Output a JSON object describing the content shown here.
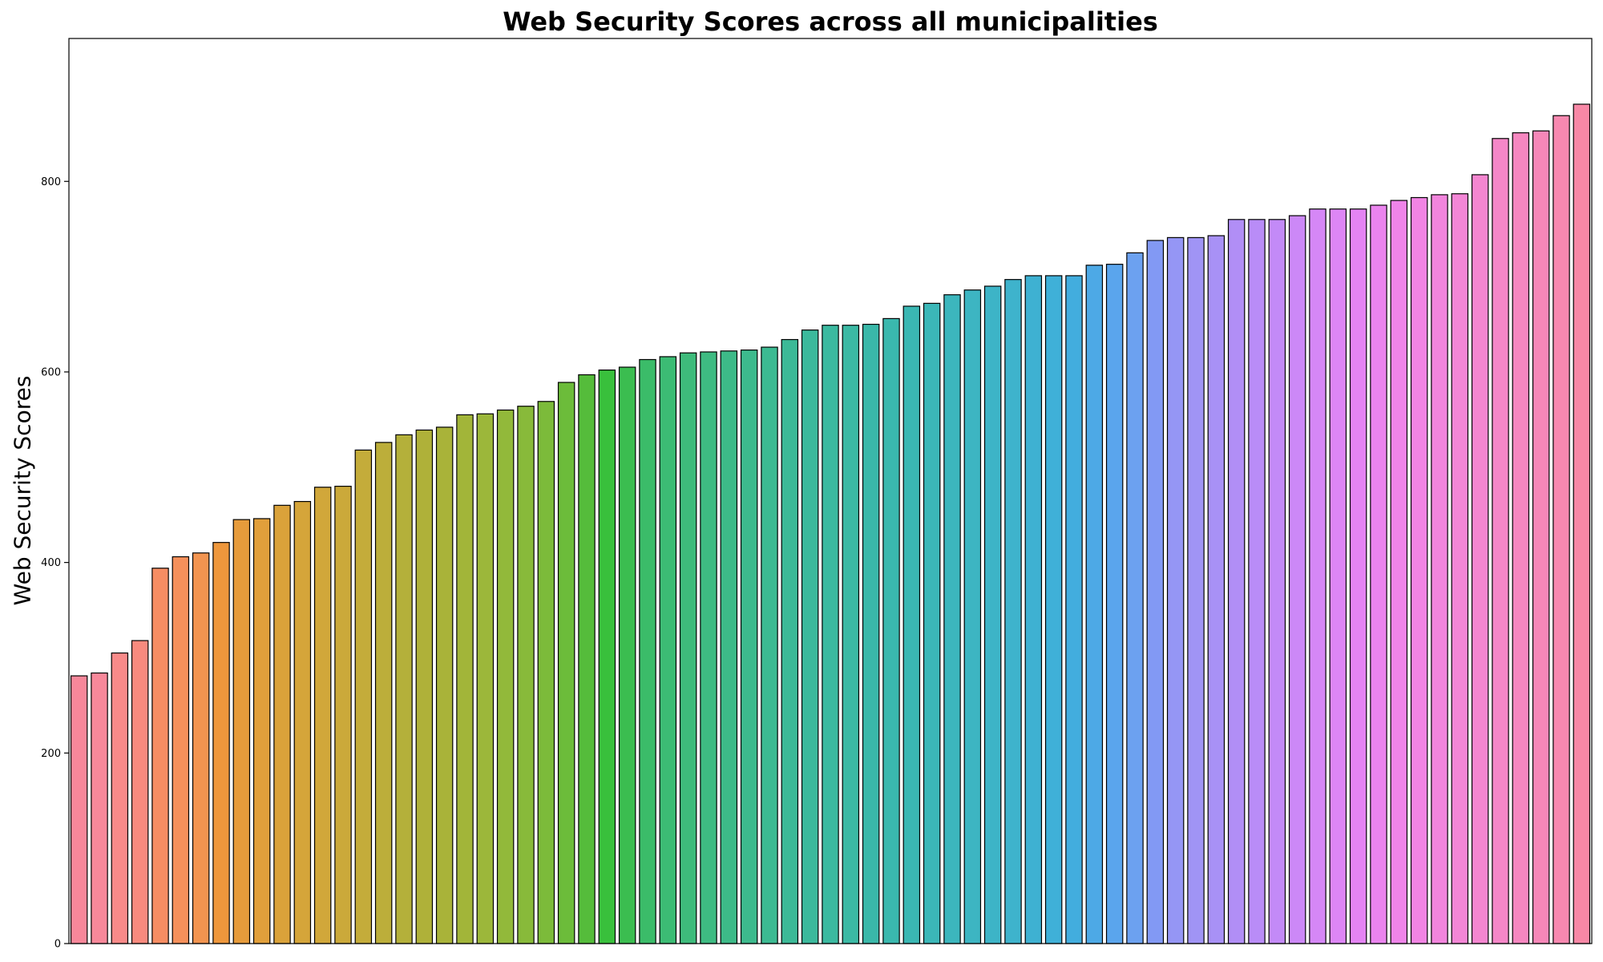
{
  "chart_data": {
    "type": "bar",
    "title": "Web Security Scores across all municipalities",
    "xlabel": "",
    "ylabel": "Web Security Scores",
    "ylim": [
      0,
      950
    ],
    "yticks": [
      0,
      200,
      400,
      600,
      800
    ],
    "grid": false,
    "values": [
      281,
      284,
      305,
      318,
      394,
      406,
      410,
      421,
      445,
      446,
      460,
      464,
      479,
      480,
      518,
      526,
      534,
      539,
      542,
      555,
      556,
      560,
      564,
      569,
      589,
      597,
      602,
      605,
      613,
      616,
      620,
      621,
      622,
      623,
      626,
      634,
      644,
      649,
      649,
      650,
      656,
      669,
      672,
      681,
      686,
      690,
      697,
      701,
      701,
      701,
      712,
      713,
      725,
      738,
      741,
      741,
      743,
      760,
      760,
      760,
      764,
      771,
      771,
      771,
      775,
      780,
      783,
      786,
      787,
      807,
      845,
      851,
      853,
      869,
      881
    ],
    "colors": [
      "#f7879a",
      "#f7889a",
      "#f88a89",
      "#f88a7e",
      "#f68d63",
      "#f5905b",
      "#f29450",
      "#ee973c",
      "#e69b3b",
      "#e19f3b",
      "#daa23a",
      "#d5a53a",
      "#d1a73a",
      "#cba93a",
      "#c4ac3a",
      "#bcae3a",
      "#b4b03a",
      "#afb139",
      "#a9b339",
      "#a2b539",
      "#9cb73a",
      "#92b93a",
      "#88ba3a",
      "#7cbb3a",
      "#6cbc3a",
      "#55bc3b",
      "#39c03c",
      "#3bbd50",
      "#3bbc69",
      "#3cbc74",
      "#3ebb7b",
      "#3ebb82",
      "#3dba88",
      "#3dba8d",
      "#3cba92",
      "#3cb997",
      "#3cb99c",
      "#3bb9a0",
      "#3bb9a4",
      "#3ab8a9",
      "#3ab8ae",
      "#3ab7b3",
      "#3bb7b8",
      "#3cb6bd",
      "#3db5c2",
      "#3db4c7",
      "#3eb3cc",
      "#3eb1d2",
      "#3fb0d8",
      "#42adde",
      "#4da9e6",
      "#5aa5ed",
      "#6ca1f0",
      "#8299f4",
      "#9596f5",
      "#a094f5",
      "#a891f6",
      "#b18ef6",
      "#b98cf7",
      "#c38af7",
      "#cc88f7",
      "#d587f6",
      "#dd86f5",
      "#e484f3",
      "#ea84ee",
      "#ef84e9",
      "#f184e3",
      "#f285dd",
      "#f386d6",
      "#f486d0",
      "#f587c8",
      "#f687c0",
      "#f687b8",
      "#f788b0",
      "#f788a6"
    ]
  }
}
